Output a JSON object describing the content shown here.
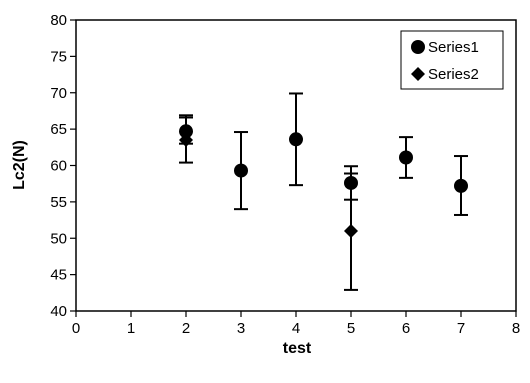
{
  "chart_data": {
    "type": "scatter",
    "title": "",
    "xlabel": "test",
    "ylabel": "Lc2(N)",
    "xlim": [
      0,
      8
    ],
    "ylim": [
      40,
      80
    ],
    "x_ticks": [
      "0",
      "1",
      "2",
      "3",
      "4",
      "5",
      "6",
      "7",
      "8"
    ],
    "y_ticks": [
      "40",
      "45",
      "50",
      "55",
      "60",
      "65",
      "70",
      "75",
      "80"
    ],
    "grid": false,
    "legend_position": "top-right",
    "series": [
      {
        "name": "Series1",
        "marker": "circle",
        "points": [
          {
            "x": 2,
            "y": 64.7,
            "err_low": 63.0,
            "err_high": 66.6
          },
          {
            "x": 3,
            "y": 59.3,
            "err_low": 54.0,
            "err_high": 64.6
          },
          {
            "x": 4,
            "y": 63.6,
            "err_low": 57.3,
            "err_high": 69.9
          },
          {
            "x": 5,
            "y": 57.6,
            "err_low": 55.3,
            "err_high": 59.9
          },
          {
            "x": 6,
            "y": 61.1,
            "err_low": 58.3,
            "err_high": 63.9
          },
          {
            "x": 7,
            "y": 57.2,
            "err_low": 53.2,
            "err_high": 61.3
          }
        ]
      },
      {
        "name": "Series2",
        "marker": "diamond",
        "points": [
          {
            "x": 2,
            "y": 63.5,
            "err_low": 60.4,
            "err_high": 66.9
          },
          {
            "x": 5,
            "y": 51.0,
            "err_low": 42.9,
            "err_high": 58.9
          }
        ]
      }
    ]
  }
}
